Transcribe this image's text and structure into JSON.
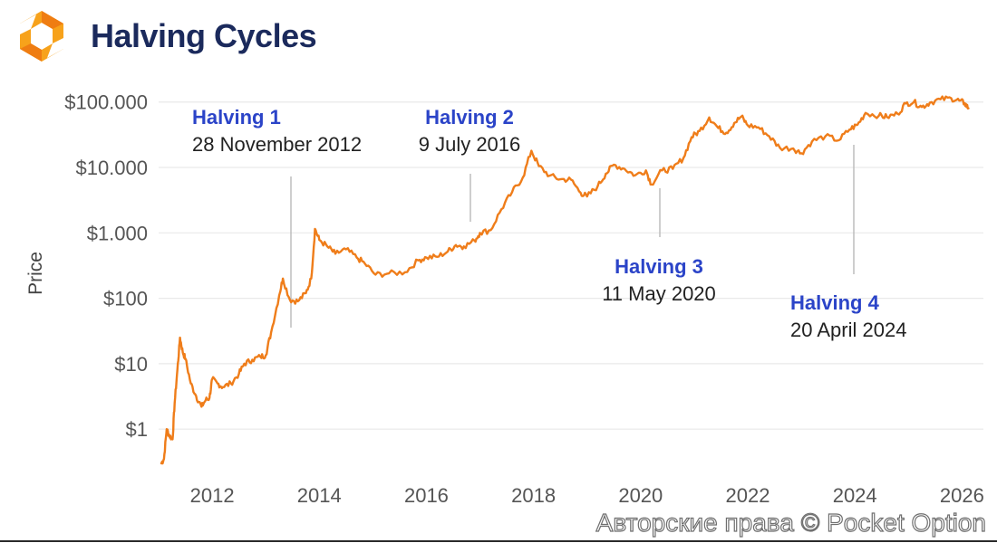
{
  "header": {
    "title": "Halving Cycles",
    "logo_icon": "pocket-option-logo-icon",
    "logo_colors": [
      "#f7a21b",
      "#ef7d12"
    ]
  },
  "watermark": "Авторские права © Pocket Option",
  "colors": {
    "line": "#ef7d1a",
    "grid": "#e9e9e9",
    "tick_text": "#555555",
    "halving_label": "#2b44c8",
    "halving_date": "#222222",
    "halving_marker": "#bdbdbd"
  },
  "chart_data": {
    "type": "line",
    "title": "Halving Cycles",
    "xlabel": "",
    "ylabel": "Price",
    "yscale": "log",
    "ylim": [
      0.3,
      150000
    ],
    "xlim": [
      2011.0,
      2026.4
    ],
    "grid": "horizontal",
    "x_ticks": [
      2012,
      2014,
      2016,
      2018,
      2020,
      2022,
      2024,
      2026
    ],
    "x_tick_labels": [
      "2012",
      "2014",
      "2016",
      "2018",
      "2020",
      "2022",
      "2024",
      "2026"
    ],
    "y_ticks": [
      1,
      10,
      100,
      1000,
      10000,
      100000
    ],
    "y_tick_labels": [
      "$1",
      "$10",
      "$100",
      "$1.000",
      "$10.000",
      "$100.000"
    ],
    "series": [
      {
        "x": [
          2011.05,
          2011.1,
          2011.15,
          2011.2,
          2011.26,
          2011.3,
          2011.35,
          2011.4,
          2011.45,
          2011.5,
          2011.6,
          2011.7,
          2011.8,
          2011.88,
          2011.95,
          2012.0,
          2012.1,
          2012.2,
          2012.35,
          2012.5,
          2012.6,
          2012.75,
          2012.9,
          2013.0,
          2013.1,
          2013.25,
          2013.32,
          2013.45,
          2013.6,
          2013.75,
          2013.85,
          2013.92,
          2014.0,
          2014.15,
          2014.3,
          2014.5,
          2014.7,
          2014.85,
          2015.05,
          2015.3,
          2015.6,
          2015.85,
          2016.0,
          2016.2,
          2016.4,
          2016.55,
          2016.7,
          2016.9,
          2017.0,
          2017.2,
          2017.4,
          2017.6,
          2017.8,
          2017.96,
          2018.1,
          2018.3,
          2018.5,
          2018.7,
          2018.88,
          2019.0,
          2019.2,
          2019.35,
          2019.5,
          2019.7,
          2019.9,
          2020.1,
          2020.2,
          2020.4,
          2020.6,
          2020.8,
          2020.95,
          2021.1,
          2021.28,
          2021.45,
          2021.6,
          2021.75,
          2021.88,
          2022.0,
          2022.2,
          2022.4,
          2022.6,
          2022.85,
          2023.0,
          2023.2,
          2023.45,
          2023.7,
          2023.9,
          2024.05,
          2024.2,
          2024.45,
          2024.6,
          2024.8,
          2024.95,
          2025.1,
          2025.25,
          2025.4,
          2025.6,
          2025.8,
          2025.95,
          2026.05,
          2026.12
        ],
        "y": [
          0.3,
          0.35,
          1.0,
          0.8,
          0.7,
          2.5,
          8.0,
          25.0,
          15.0,
          12.0,
          5.0,
          3.2,
          2.2,
          2.8,
          3.0,
          5.8,
          5.0,
          4.4,
          5.0,
          7.0,
          10.0,
          11.5,
          12.8,
          13.5,
          30.0,
          110.0,
          200.0,
          95.0,
          90.0,
          120.0,
          200.0,
          1150.0,
          780.0,
          620.0,
          480.0,
          560.0,
          420.0,
          340.0,
          230.0,
          240.0,
          250.0,
          380.0,
          420.0,
          430.0,
          520.0,
          650.0,
          620.0,
          760.0,
          1000.0,
          1100.0,
          2300.0,
          4200.0,
          7000.0,
          18000.0,
          10500.0,
          7500.0,
          6600.0,
          6500.0,
          4100.0,
          3600.0,
          5200.0,
          8000.0,
          11000.0,
          9500.0,
          7600.0,
          9000.0,
          5500.0,
          9000.0,
          9500.0,
          14000.0,
          29000.0,
          36000.0,
          58000.0,
          40000.0,
          34000.0,
          48000.0,
          60000.0,
          44000.0,
          41000.0,
          30000.0,
          20000.0,
          19500.0,
          16500.0,
          25000.0,
          30000.0,
          26000.0,
          38000.0,
          45000.0,
          68000.0,
          62000.0,
          59000.0,
          66000.0,
          95000.0,
          100000.0,
          84000.0,
          98000.0,
          110000.0,
          114000.0,
          105000.0,
          96000.0,
          80000.0
        ]
      }
    ],
    "annotations": [
      {
        "label": "Halving 1",
        "date": "28 November 2012",
        "x": 2012.91
      },
      {
        "label": "Halving 2",
        "date": "9 July 2016",
        "x": 2016.52
      },
      {
        "label": "Halving 3",
        "date": "11 May 2020",
        "x": 2020.36
      },
      {
        "label": "Halving 4",
        "date": "20 April 2024",
        "x": 2024.3
      }
    ]
  }
}
